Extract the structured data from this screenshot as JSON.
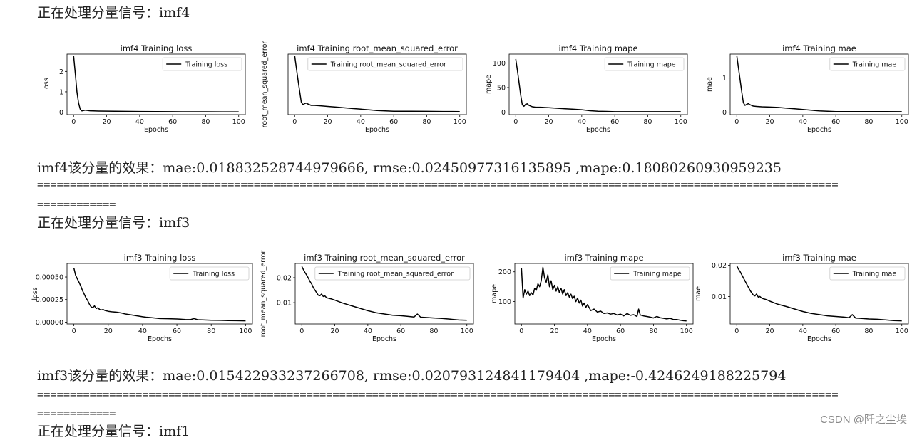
{
  "blocks": [
    {
      "header": "正在处理分量信号：imf4",
      "result": "imf4该分量的效果：mae:0.018832528744979666, rmse:0.02450977316135895 ,mape:0.18080260930959235",
      "separator_line1": "==========================================================================================================================",
      "separator_line2": "============",
      "charts": [
        {
          "title": "imf4 Training loss",
          "legend": "Training loss",
          "xlabel": "Epochs",
          "ylabel": "loss",
          "xticks": [
            "0",
            "20",
            "40",
            "60",
            "80",
            "100"
          ],
          "yticks": [
            "0",
            "1",
            "2"
          ],
          "ytick_values": [
            0,
            1,
            2
          ],
          "xlim": [
            -4,
            104
          ],
          "ylim": [
            -0.12,
            2.85
          ],
          "x": [
            0,
            1,
            2,
            3,
            4,
            5,
            6,
            7,
            8,
            10,
            12,
            15,
            20,
            25,
            30,
            40,
            50,
            60,
            70,
            80,
            90,
            100
          ],
          "y": [
            2.75,
            1.9,
            1.0,
            0.45,
            0.15,
            0.06,
            0.08,
            0.1,
            0.09,
            0.07,
            0.06,
            0.055,
            0.05,
            0.045,
            0.04,
            0.035,
            0.03,
            0.025,
            0.02,
            0.02,
            0.018,
            0.015
          ]
        },
        {
          "title": "imf4 Training root_mean_squared_error",
          "legend": "Training root_mean_squared_error",
          "xlabel": "Epochs",
          "ylabel": "root_mean_squared_error",
          "xticks": [
            "0",
            "20",
            "40",
            "60",
            "80",
            "100"
          ],
          "yticks": [],
          "ytick_values": [],
          "xlim": [
            -4,
            104
          ],
          "ylim": [
            -0.07,
            1.7
          ],
          "x": [
            0,
            1,
            2,
            3,
            4,
            5,
            6,
            7,
            8,
            10,
            12,
            15,
            20,
            25,
            30,
            35,
            40,
            45,
            50,
            55,
            60,
            70,
            80,
            90,
            100
          ],
          "y": [
            1.65,
            1.3,
            0.95,
            0.62,
            0.3,
            0.22,
            0.25,
            0.27,
            0.24,
            0.2,
            0.2,
            0.19,
            0.17,
            0.15,
            0.13,
            0.11,
            0.09,
            0.07,
            0.05,
            0.04,
            0.03,
            0.028,
            0.025,
            0.022,
            0.02
          ]
        },
        {
          "title": "imf4 Training mape",
          "legend": "Training mape",
          "xlabel": "Epochs",
          "ylabel": "mape",
          "xticks": [
            "0",
            "20",
            "40",
            "60",
            "80",
            "100"
          ],
          "yticks": [
            "0",
            "50",
            "100"
          ],
          "ytick_values": [
            0,
            50,
            100
          ],
          "xlim": [
            -4,
            104
          ],
          "ylim": [
            -5,
            118
          ],
          "x": [
            0,
            1,
            2,
            3,
            4,
            5,
            6,
            7,
            8,
            10,
            12,
            15,
            20,
            25,
            30,
            35,
            40,
            45,
            50,
            55,
            60,
            70,
            80,
            90,
            100
          ],
          "y": [
            108,
            85,
            60,
            35,
            15,
            12,
            16,
            17,
            14,
            11,
            10,
            10,
            9,
            8,
            7,
            6,
            5,
            3,
            2,
            1.5,
            1,
            1,
            1,
            1,
            1
          ]
        },
        {
          "title": "imf4 Training mae",
          "legend": "Training mae",
          "xlabel": "Epochs",
          "ylabel": "mae",
          "xticks": [
            "0",
            "20",
            "40",
            "60",
            "80",
            "100"
          ],
          "yticks": [
            "0",
            "1"
          ],
          "ytick_values": [
            0,
            1
          ],
          "xlim": [
            -4,
            104
          ],
          "ylim": [
            -0.07,
            1.7
          ],
          "x": [
            0,
            1,
            2,
            3,
            4,
            5,
            6,
            7,
            8,
            10,
            12,
            15,
            20,
            25,
            30,
            35,
            40,
            45,
            50,
            55,
            60,
            70,
            80,
            90,
            100
          ],
          "y": [
            1.65,
            1.3,
            0.95,
            0.6,
            0.28,
            0.2,
            0.23,
            0.25,
            0.22,
            0.18,
            0.17,
            0.16,
            0.15,
            0.14,
            0.12,
            0.1,
            0.08,
            0.06,
            0.04,
            0.03,
            0.02,
            0.02,
            0.02,
            0.018,
            0.015
          ]
        }
      ]
    },
    {
      "header": "正在处理分量信号：imf3",
      "result": "imf3该分量的效果：mae:0.015422933237266708, rmse:0.020793124841179404 ,mape:-0.4246249188225794",
      "separator_line1": "==========================================================================================================================",
      "separator_line2": "============",
      "charts": [
        {
          "title": "imf3 Training loss",
          "legend": "Training loss",
          "xlabel": "Epochs",
          "ylabel": "loss",
          "xticks": [
            "0",
            "20",
            "40",
            "60",
            "80",
            "100"
          ],
          "yticks": [
            "0.00000",
            "0.00025",
            "0.00050"
          ],
          "ytick_values": [
            0,
            0.00025,
            0.0005
          ],
          "xlim": [
            -4,
            104
          ],
          "ylim": [
            -2e-05,
            0.00065
          ],
          "x": [
            0,
            1,
            2,
            3,
            4,
            5,
            6,
            7,
            8,
            9,
            10,
            11,
            12,
            13,
            14,
            15,
            16,
            17,
            18,
            20,
            22,
            25,
            28,
            30,
            35,
            40,
            42,
            45,
            50,
            55,
            60,
            65,
            68,
            70,
            72,
            75,
            80,
            85,
            90,
            95,
            100
          ],
          "y": [
            0.0006,
            0.00052,
            0.00048,
            0.00044,
            0.0004,
            0.00035,
            0.00031,
            0.00027,
            0.00024,
            0.0002,
            0.00017,
            0.00016,
            0.00018,
            0.00015,
            0.00016,
            0.00014,
            0.000135,
            0.00014,
            0.00013,
            0.00012,
            0.000115,
            0.00011,
            0.0001,
            9e-05,
            7.5e-05,
            6e-05,
            5.5e-05,
            5e-05,
            4e-05,
            3.8e-05,
            3.5e-05,
            3e-05,
            2.8e-05,
            4e-05,
            2.7e-05,
            2.5e-05,
            2.2e-05,
            2e-05,
            1.8e-05,
            1.6e-05,
            1.5e-05
          ]
        },
        {
          "title": "imf3 Training root_mean_squared_error",
          "legend": "Training root_mean_squared_error",
          "xlabel": "Epochs",
          "ylabel": "root_mean_squared_error",
          "xticks": [
            "0",
            "20",
            "40",
            "60",
            "80",
            "100"
          ],
          "yticks": [
            "0.01",
            "0.02"
          ],
          "ytick_values": [
            0.01,
            0.02
          ],
          "xlim": [
            -4,
            104
          ],
          "ylim": [
            0.0015,
            0.0257
          ],
          "x": [
            0,
            1,
            2,
            3,
            4,
            5,
            6,
            7,
            8,
            9,
            10,
            11,
            12,
            13,
            14,
            15,
            16,
            18,
            20,
            25,
            30,
            35,
            40,
            45,
            50,
            55,
            60,
            65,
            68,
            70,
            72,
            75,
            80,
            85,
            90,
            95,
            100
          ],
          "y": [
            0.0245,
            0.0232,
            0.022,
            0.021,
            0.0198,
            0.0185,
            0.0175,
            0.016,
            0.015,
            0.014,
            0.013,
            0.0128,
            0.0135,
            0.0125,
            0.0127,
            0.012,
            0.0118,
            0.0115,
            0.011,
            0.0098,
            0.0088,
            0.0078,
            0.0068,
            0.006,
            0.0055,
            0.005,
            0.0048,
            0.0045,
            0.0043,
            0.0055,
            0.0042,
            0.0041,
            0.0039,
            0.0037,
            0.0034,
            0.0031,
            0.003
          ]
        },
        {
          "title": "imf3 Training mape",
          "legend": "Training mape",
          "xlabel": "Epochs",
          "ylabel": "mape",
          "xticks": [
            "0",
            "20",
            "40",
            "60",
            "80",
            "100"
          ],
          "yticks": [
            "100",
            "200"
          ],
          "ytick_values": [
            100,
            200
          ],
          "xlim": [
            -4,
            104
          ],
          "ylim": [
            25,
            228
          ],
          "x": [
            0,
            1,
            2,
            3,
            4,
            5,
            6,
            7,
            8,
            9,
            10,
            11,
            12,
            13,
            14,
            15,
            16,
            17,
            18,
            19,
            20,
            21,
            22,
            23,
            24,
            25,
            26,
            27,
            28,
            29,
            30,
            31,
            32,
            33,
            34,
            35,
            36,
            37,
            38,
            39,
            40,
            42,
            44,
            46,
            48,
            50,
            52,
            54,
            56,
            58,
            60,
            62,
            64,
            66,
            68,
            70,
            71,
            72,
            74,
            76,
            78,
            80,
            82,
            84,
            86,
            88,
            90,
            92,
            94,
            96,
            98,
            100
          ],
          "y": [
            212,
            112,
            140,
            125,
            135,
            120,
            130,
            122,
            145,
            138,
            160,
            150,
            170,
            215,
            180,
            165,
            190,
            150,
            170,
            140,
            155,
            135,
            150,
            130,
            145,
            125,
            140,
            120,
            130,
            115,
            125,
            110,
            118,
            100,
            112,
            95,
            105,
            85,
            95,
            80,
            90,
            70,
            75,
            65,
            68,
            60,
            62,
            58,
            60,
            55,
            58,
            52,
            60,
            54,
            56,
            50,
            75,
            55,
            52,
            50,
            48,
            45,
            50,
            46,
            44,
            42,
            44,
            40,
            40,
            38,
            36,
            35
          ]
        },
        {
          "title": "imf3 Training mae",
          "legend": "Training mae",
          "xlabel": "Epochs",
          "ylabel": "mae",
          "xticks": [
            "0",
            "20",
            "40",
            "60",
            "80",
            "100"
          ],
          "yticks": [
            "0.01",
            "0.02"
          ],
          "ytick_values": [
            0.01,
            0.02
          ],
          "xlim": [
            -4,
            104
          ],
          "ylim": [
            0.0012,
            0.0206
          ],
          "x": [
            0,
            1,
            2,
            3,
            4,
            5,
            6,
            7,
            8,
            9,
            10,
            11,
            12,
            13,
            14,
            15,
            16,
            18,
            20,
            25,
            30,
            35,
            40,
            45,
            50,
            55,
            60,
            65,
            68,
            70,
            72,
            75,
            80,
            85,
            90,
            95,
            100
          ],
          "y": [
            0.0198,
            0.0188,
            0.018,
            0.017,
            0.016,
            0.015,
            0.014,
            0.013,
            0.012,
            0.0112,
            0.0105,
            0.0102,
            0.0108,
            0.0098,
            0.01,
            0.0095,
            0.0093,
            0.009,
            0.0085,
            0.0075,
            0.0068,
            0.006,
            0.0052,
            0.0046,
            0.0042,
            0.0038,
            0.0036,
            0.0034,
            0.0032,
            0.0042,
            0.0031,
            0.003,
            0.0028,
            0.0027,
            0.0025,
            0.0023,
            0.0022
          ]
        }
      ]
    }
  ],
  "next_header": "正在处理分量信号：imf1",
  "watermark": "CSDN @阡之尘埃"
}
